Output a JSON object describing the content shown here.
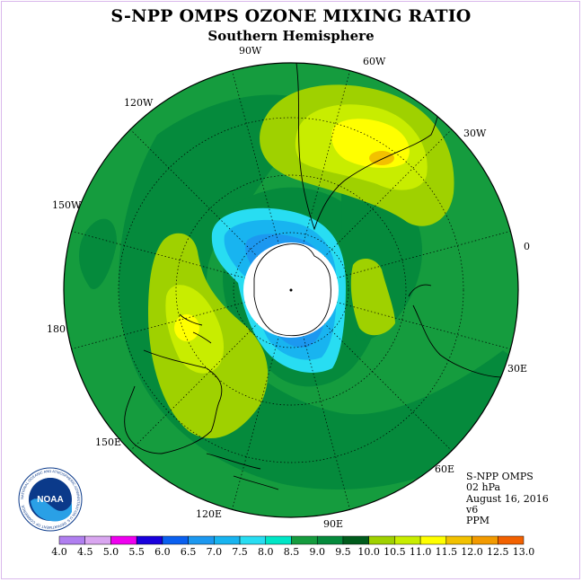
{
  "header": {
    "title": "S-NPP OMPS OZONE MIXING RATIO",
    "subtitle": "Southern Hemisphere"
  },
  "longitude_labels": [
    "90W",
    "60W",
    "120W",
    "30W",
    "150W",
    "0",
    "180",
    "30E",
    "150E",
    "60E",
    "120E",
    "90E"
  ],
  "info": {
    "instrument": "S-NPP OMPS",
    "level": "02 hPa",
    "date": "August 16, 2016",
    "version": "v6",
    "units": "PPM"
  },
  "logo": {
    "text": "NOAA",
    "ring_text": "NATIONAL OCEANIC AND ATMOSPHERIC ADMINISTRATION U.S. DEPARTMENT OF COMMERCE"
  },
  "colorbar": {
    "ticks": [
      "4.0",
      "4.5",
      "5.0",
      "5.5",
      "6.0",
      "6.5",
      "7.0",
      "7.5",
      "8.0",
      "8.5",
      "9.0",
      "9.5",
      "10.0",
      "10.5",
      "11.0",
      "11.5",
      "12.0",
      "12.5",
      "13.0"
    ],
    "colors": [
      "#b07ff0",
      "#d9a6f0",
      "#ef00ef",
      "#1900dd",
      "#0a60f0",
      "#1c98f0",
      "#18b4f0",
      "#28ddf2",
      "#00e6c6",
      "#159c3e",
      "#058a3c",
      "#005c1c",
      "#9fd100",
      "#c8ed00",
      "#ffff00",
      "#f2c100",
      "#f29a00",
      "#f26100",
      "#ee0000",
      "#8c4c3c"
    ]
  }
}
